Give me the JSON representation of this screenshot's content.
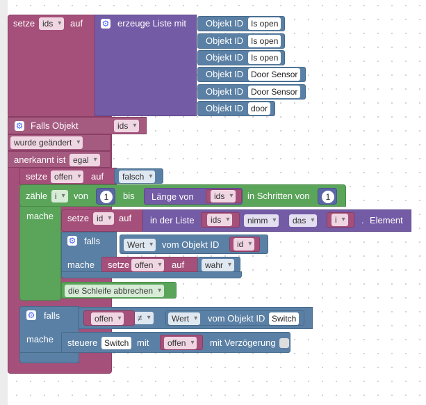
{
  "set_ids": {
    "set": "setze",
    "var": "ids",
    "to": "auf"
  },
  "create_list": {
    "label": "erzeuge Liste mit"
  },
  "list_items": [
    {
      "label": "Objekt ID",
      "value": "Is open"
    },
    {
      "label": "Objekt ID",
      "value": "Is open"
    },
    {
      "label": "Objekt ID",
      "value": "Is open"
    },
    {
      "label": "Objekt ID",
      "value": "Door Sensor"
    },
    {
      "label": "Objekt ID",
      "value": "Door Sensor"
    },
    {
      "label": "Objekt ID",
      "value": "door"
    }
  ],
  "trigger": {
    "label": "Falls Objekt",
    "var": "ids",
    "changed": "wurde geändert",
    "ack_label": "anerkannt ist",
    "ack": "egal"
  },
  "set_offen": {
    "set": "setze",
    "var": "offen",
    "to": "auf",
    "value": "falsch"
  },
  "loop": {
    "count": "zähle",
    "var": "i",
    "from": "von",
    "start": "1",
    "to": "bis",
    "length_of": "Länge von",
    "list_var": "ids",
    "step_label": "in Schritten von",
    "step": "1",
    "do": "mache"
  },
  "set_id": {
    "set": "setze",
    "var": "id",
    "to": "auf",
    "in_list": "in der Liste",
    "list_var": "ids",
    "op": "nimm",
    "where": "das",
    "index_var": "i",
    "suffix": ".",
    "element": "Element"
  },
  "if1": {
    "if": "falls",
    "value_label": "Wert",
    "from_obj": "vom Objekt ID",
    "id_var": "id",
    "do": "mache",
    "set": "setze",
    "var": "offen",
    "to": "auf",
    "value": "wahr"
  },
  "break": {
    "label": "die Schleife abbrechen"
  },
  "if2": {
    "if": "falls",
    "var": "offen",
    "op": "≠",
    "value_label": "Wert",
    "from_obj": "vom Objekt ID",
    "obj": "Switch",
    "do": "mache"
  },
  "control": {
    "label": "steuere",
    "obj": "Switch",
    "with": "mit",
    "var": "offen",
    "delay": "mit Verzögerung"
  },
  "colors": {
    "variables": "#a55b80",
    "lists": "#745ba5",
    "logic": "#5b80a5",
    "loops": "#5ba55b",
    "math": "#5b67a5"
  }
}
